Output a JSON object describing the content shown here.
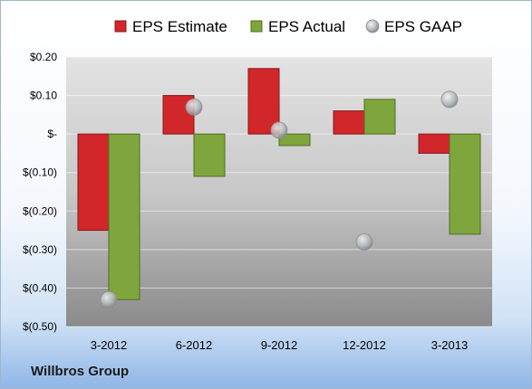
{
  "company_name": "Willbros Group",
  "colors": {
    "estimate": "#d1262a",
    "actual": "#7ea63c",
    "gaap": "#b4b8bc"
  },
  "chart_data": {
    "type": "bar",
    "categories": [
      "3-2012",
      "6-2012",
      "9-2012",
      "12-2012",
      "3-2013"
    ],
    "series": [
      {
        "name": "EPS Estimate",
        "type": "bar",
        "values": [
          -0.25,
          0.1,
          0.17,
          0.06,
          -0.05
        ]
      },
      {
        "name": "EPS Actual",
        "type": "bar",
        "values": [
          -0.43,
          -0.11,
          -0.03,
          0.09,
          -0.26
        ]
      },
      {
        "name": "EPS GAAP",
        "type": "scatter",
        "values": [
          -0.43,
          0.07,
          0.01,
          -0.28,
          0.09
        ]
      }
    ],
    "ylim": [
      -0.5,
      0.2
    ],
    "yticks": [
      0.2,
      0.1,
      0,
      -0.1,
      -0.2,
      -0.3,
      -0.4,
      -0.5
    ],
    "ytick_labels": [
      "$0.20",
      "$0.10",
      "$-",
      "$(0.10)",
      "$(0.20)",
      "$(0.30)",
      "$(0.40)",
      "$(0.50)"
    ],
    "legend_position": "top",
    "grid": true
  }
}
